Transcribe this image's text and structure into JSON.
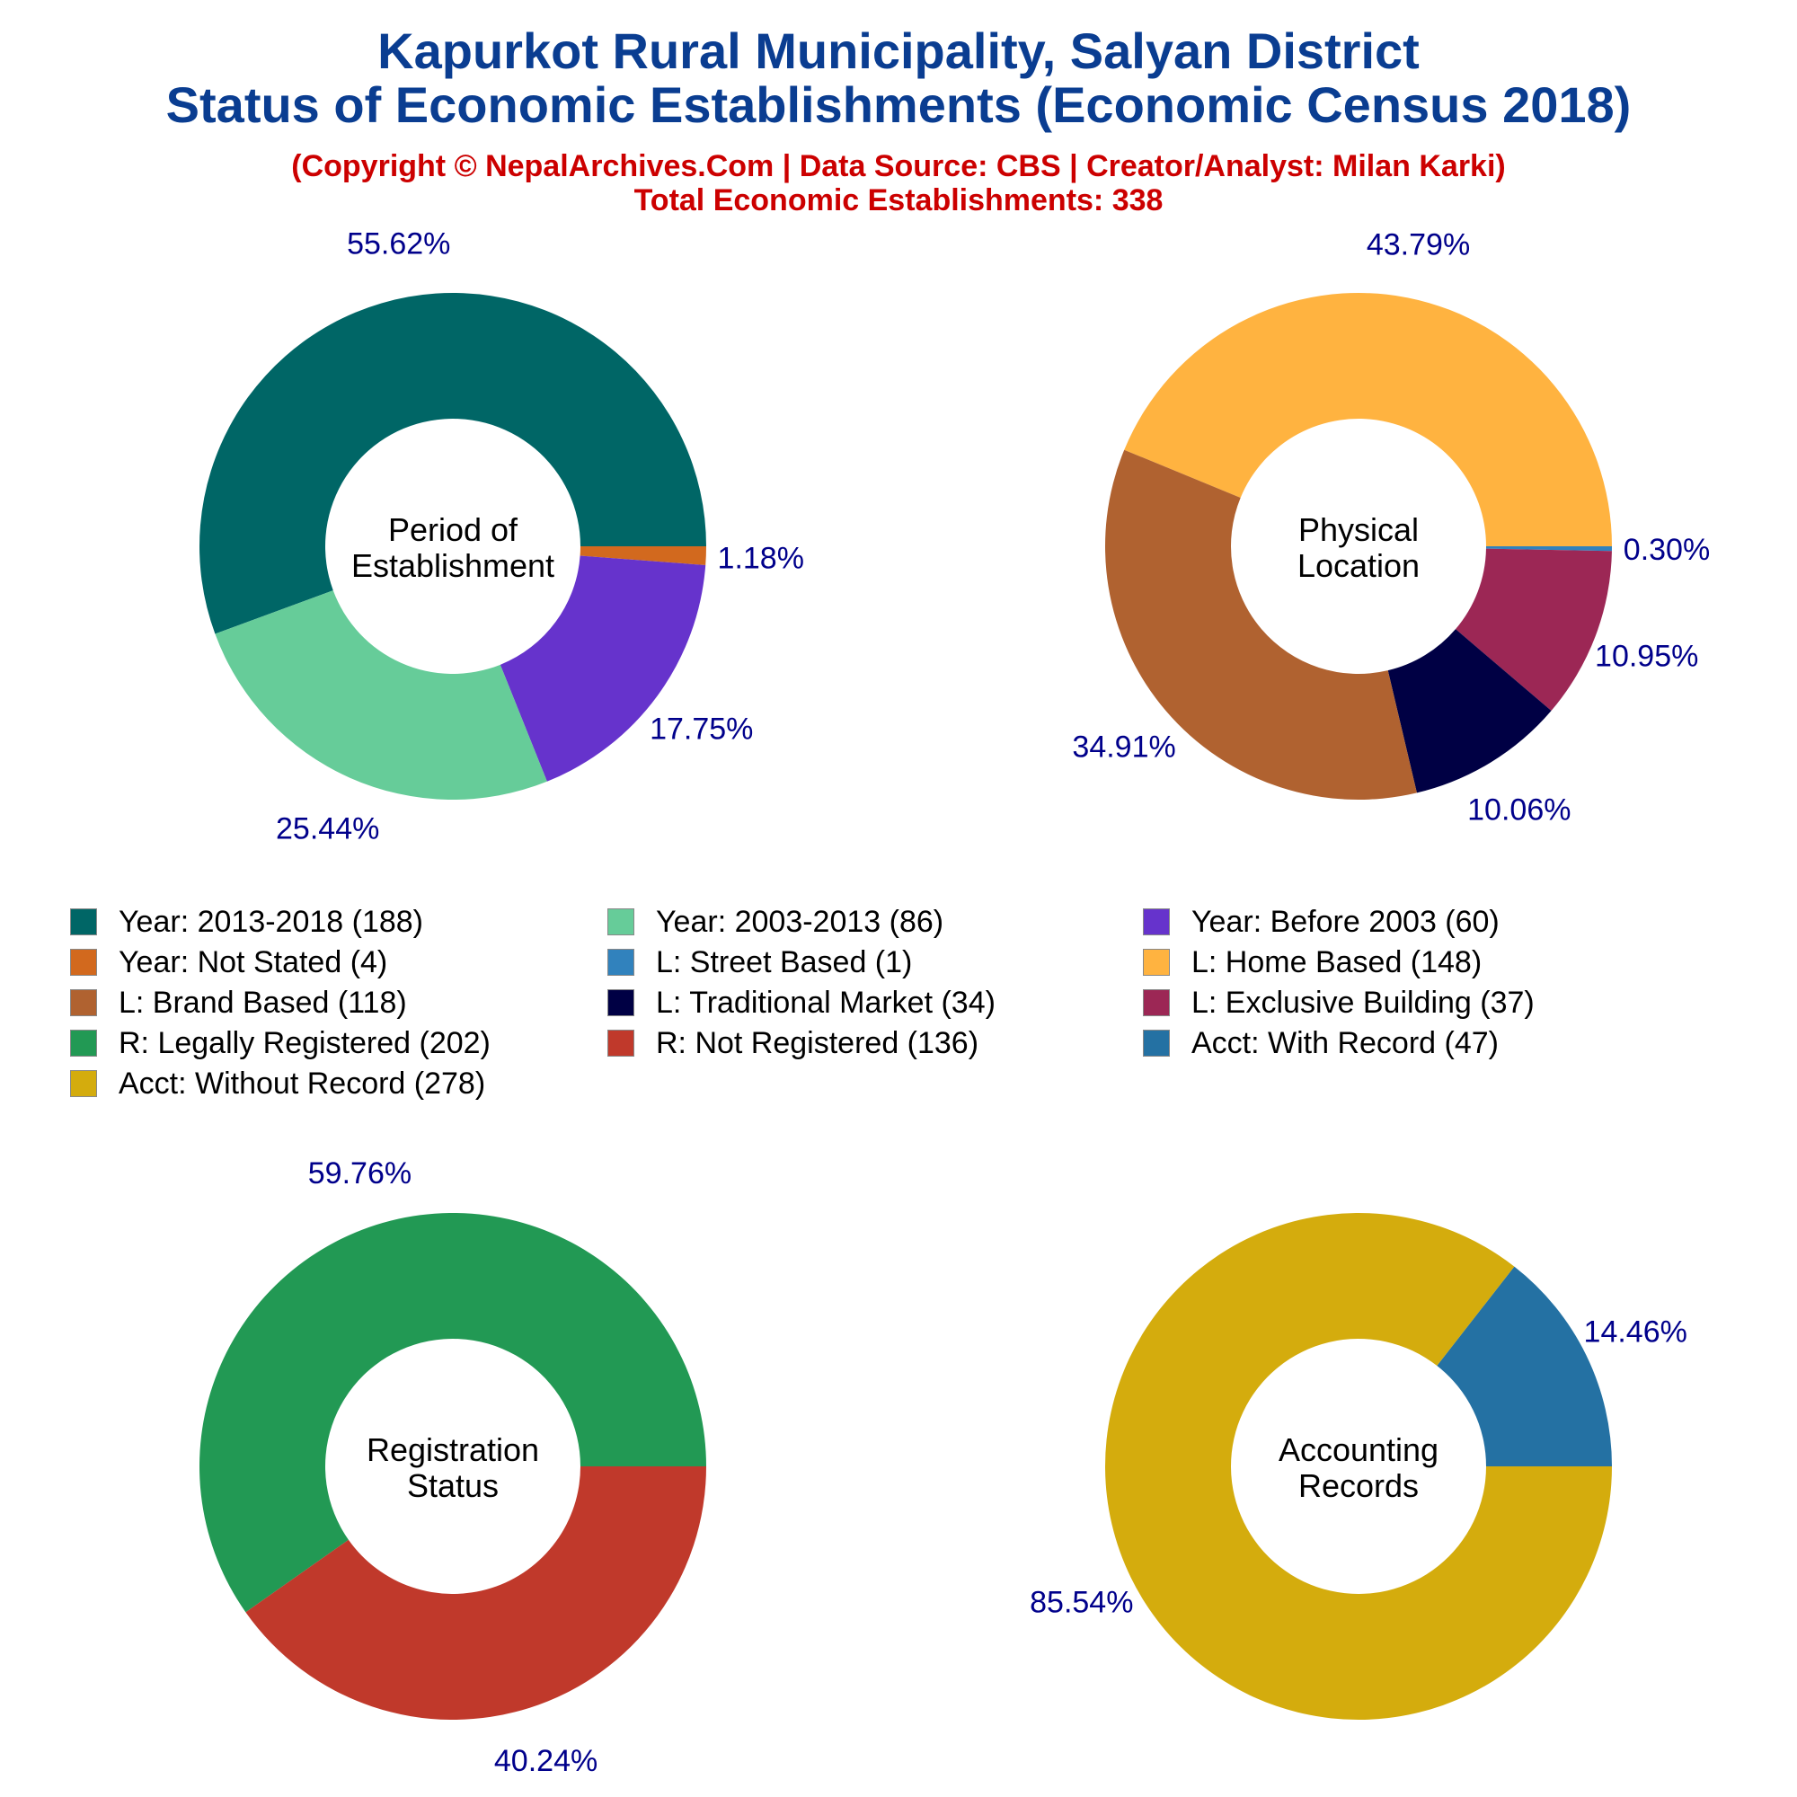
{
  "header": {
    "title_line1": "Kapurkot Rural Municipality, Salyan District",
    "title_line2": "Status of Economic Establishments (Economic Census 2018)",
    "subtitle": "(Copyright © NepalArchives.Com | Data Source: CBS | Creator/Analyst: Milan Karki)",
    "total": "Total Economic Establishments: 338"
  },
  "colors": {
    "title": "#0a3d91",
    "subtitle": "#cc0000",
    "pct_label": "#00008b"
  },
  "chart_data": [
    {
      "type": "pie",
      "center_label": [
        "Period of",
        "Establishment"
      ],
      "slices": [
        {
          "label": "Year: 2013-2018",
          "value": 188,
          "pct": "55.62%",
          "color": "#006666"
        },
        {
          "label": "Year: Not Stated",
          "value": 4,
          "pct": "1.18%",
          "color": "#d2691e"
        },
        {
          "label": "Year: Before 2003",
          "value": 60,
          "pct": "17.75%",
          "color": "#6633cc"
        },
        {
          "label": "Year: 2003-2013",
          "value": 86,
          "pct": "25.44%",
          "color": "#66cc99"
        }
      ]
    },
    {
      "type": "pie",
      "center_label": [
        "Physical",
        "Location"
      ],
      "slices": [
        {
          "label": "L: Home Based",
          "value": 148,
          "pct": "43.79%",
          "color": "#ffb340"
        },
        {
          "label": "L: Street Based",
          "value": 1,
          "pct": "0.30%",
          "color": "#3182bd"
        },
        {
          "label": "L: Exclusive Building",
          "value": 37,
          "pct": "10.95%",
          "color": "#9c2755"
        },
        {
          "label": "L: Traditional Market",
          "value": 34,
          "pct": "10.06%",
          "color": "#000044"
        },
        {
          "label": "L: Brand Based",
          "value": 118,
          "pct": "34.91%",
          "color": "#b06230"
        }
      ]
    },
    {
      "type": "pie",
      "center_label": [
        "Registration",
        "Status"
      ],
      "slices": [
        {
          "label": "R: Legally Registered",
          "value": 202,
          "pct": "59.76%",
          "color": "#229954"
        },
        {
          "label": "R: Not Registered",
          "value": 136,
          "pct": "40.24%",
          "color": "#c0392b"
        }
      ]
    },
    {
      "type": "pie",
      "center_label": [
        "Accounting",
        "Records"
      ],
      "slices": [
        {
          "label": "Acct: With Record",
          "value": 47,
          "pct": "14.46%",
          "color": "#2471a3"
        },
        {
          "label": "Acct: Without Record",
          "value": 278,
          "pct": "85.54%",
          "color": "#d4ac0d"
        }
      ]
    }
  ],
  "legend": [
    {
      "text": "Year: 2013-2018 (188)",
      "color": "#006666"
    },
    {
      "text": "Year: 2003-2013 (86)",
      "color": "#66cc99"
    },
    {
      "text": "Year: Before 2003 (60)",
      "color": "#6633cc"
    },
    {
      "text": "Year: Not Stated (4)",
      "color": "#d2691e"
    },
    {
      "text": "L: Street Based (1)",
      "color": "#3182bd"
    },
    {
      "text": "L: Home Based (148)",
      "color": "#ffb340"
    },
    {
      "text": "L: Brand Based (118)",
      "color": "#b06230"
    },
    {
      "text": "L: Traditional Market (34)",
      "color": "#000044"
    },
    {
      "text": "L: Exclusive Building (37)",
      "color": "#9c2755"
    },
    {
      "text": "R: Legally Registered (202)",
      "color": "#229954"
    },
    {
      "text": "R: Not Registered (136)",
      "color": "#c0392b"
    },
    {
      "text": "Acct: With Record (47)",
      "color": "#2471a3"
    },
    {
      "text": "Acct: Without Record (278)",
      "color": "#d4ac0d"
    }
  ]
}
